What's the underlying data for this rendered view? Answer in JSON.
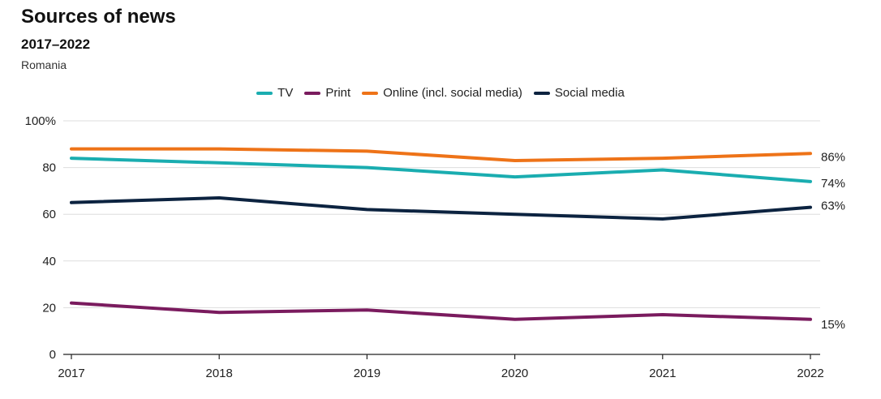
{
  "header": {
    "title": "Sources of news",
    "subtitle": "2017–2022",
    "region": "Romania"
  },
  "chart_data": {
    "type": "line",
    "title": "Sources of news",
    "subtitle": "2017–2022",
    "xlabel": "",
    "ylabel": "",
    "x": [
      "2017",
      "2018",
      "2019",
      "2020",
      "2021",
      "2022"
    ],
    "ylim": [
      0,
      100
    ],
    "yticks": [
      {
        "value": 0,
        "label": "0"
      },
      {
        "value": 20,
        "label": "20"
      },
      {
        "value": 40,
        "label": "40"
      },
      {
        "value": 60,
        "label": "60"
      },
      {
        "value": 80,
        "label": "80"
      },
      {
        "value": 100,
        "label": "100%"
      }
    ],
    "grid": "horizontal",
    "legend_position": "top-center",
    "series": [
      {
        "name": "TV",
        "color": "#1AADB0",
        "values": [
          84,
          82,
          80,
          76,
          79,
          74
        ],
        "end_label": "74%"
      },
      {
        "name": "Print",
        "color": "#7A1B5E",
        "values": [
          22,
          18,
          19,
          15,
          17,
          15
        ],
        "end_label": "15%"
      },
      {
        "name": "Online (incl. social media)",
        "color": "#EE7318",
        "values": [
          88,
          88,
          87,
          83,
          84,
          86
        ],
        "end_label": "86%"
      },
      {
        "name": "Social media",
        "color": "#0C2340",
        "values": [
          65,
          67,
          62,
          60,
          58,
          63
        ],
        "end_label": "63%"
      }
    ]
  }
}
